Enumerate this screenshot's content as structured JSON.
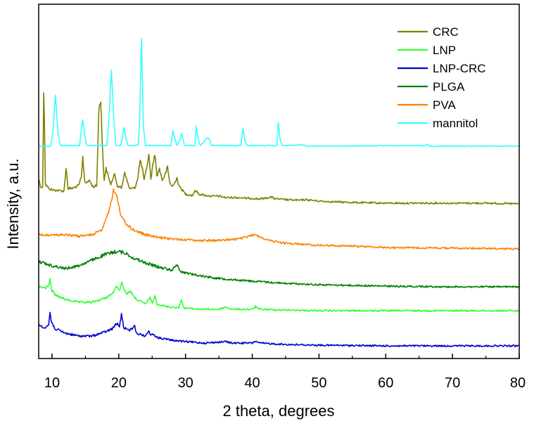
{
  "chart_data": {
    "type": "line",
    "title": "",
    "xlabel": "2 theta, degrees",
    "ylabel": "Intensity, a.u.",
    "xlim": [
      8,
      80
    ],
    "x_ticks": [
      10,
      20,
      30,
      40,
      50,
      60,
      70,
      80
    ],
    "y_ticks_shown": false,
    "legend_position": "top-right",
    "series": [
      {
        "name": "CRC",
        "color": "#808000",
        "baseline": 290,
        "decay": 35,
        "points": [
          [
            8,
            255
          ],
          [
            8.3,
            265
          ],
          [
            8.6,
            267
          ],
          [
            8.75,
            130
          ],
          [
            8.85,
            165
          ],
          [
            9.0,
            262
          ],
          [
            9.5,
            268
          ],
          [
            10,
            270
          ],
          [
            11,
            271
          ],
          [
            11.8,
            272
          ],
          [
            12.1,
            238
          ],
          [
            12.4,
            268
          ],
          [
            13,
            268
          ],
          [
            14,
            264
          ],
          [
            14.4,
            252
          ],
          [
            14.6,
            224
          ],
          [
            14.9,
            258
          ],
          [
            15.3,
            260
          ],
          [
            15.6,
            256
          ],
          [
            15.9,
            262
          ],
          [
            16.2,
            266
          ],
          [
            16.7,
            264
          ],
          [
            17.0,
            158
          ],
          [
            17.3,
            140
          ],
          [
            17.5,
            200
          ],
          [
            17.8,
            255
          ],
          [
            18.1,
            240
          ],
          [
            18.4,
            250
          ],
          [
            18.8,
            262
          ],
          [
            19.1,
            255
          ],
          [
            19.4,
            248
          ],
          [
            19.8,
            264
          ],
          [
            20.4,
            268
          ],
          [
            20.9,
            244
          ],
          [
            21.2,
            256
          ],
          [
            21.6,
            268
          ],
          [
            22.4,
            268
          ],
          [
            22.8,
            255
          ],
          [
            23.2,
            228
          ],
          [
            23.5,
            238
          ],
          [
            23.8,
            256
          ],
          [
            24.2,
            240
          ],
          [
            24.5,
            218
          ],
          [
            24.8,
            255
          ],
          [
            25.1,
            235
          ],
          [
            25.4,
            218
          ],
          [
            25.7,
            250
          ],
          [
            26.1,
            240
          ],
          [
            26.5,
            256
          ],
          [
            26.9,
            250
          ],
          [
            27.3,
            238
          ],
          [
            27.6,
            258
          ],
          [
            28.0,
            266
          ],
          [
            28.4,
            260
          ],
          [
            28.7,
            252
          ],
          [
            29.0,
            265
          ],
          [
            29.5,
            270
          ],
          [
            30,
            276
          ],
          [
            31,
            278
          ],
          [
            31.5,
            271
          ],
          [
            32,
            276
          ],
          [
            33,
            278
          ],
          [
            34,
            279
          ],
          [
            35,
            279
          ],
          [
            36,
            281
          ],
          [
            37,
            281
          ],
          [
            38,
            281
          ],
          [
            39,
            282
          ],
          [
            40,
            282
          ],
          [
            41,
            283
          ],
          [
            42,
            282
          ],
          [
            42.7,
            280
          ],
          [
            43.5,
            283
          ],
          [
            45,
            284
          ],
          [
            47,
            285
          ],
          [
            48,
            284
          ],
          [
            50,
            286
          ],
          [
            52,
            287
          ],
          [
            55,
            288
          ],
          [
            60,
            289
          ],
          [
            65,
            289
          ],
          [
            70,
            289
          ],
          [
            75,
            289
          ],
          [
            80,
            290
          ]
        ]
      },
      {
        "name": "LNP",
        "color": "#33ff33",
        "baseline": 442,
        "decay": 25,
        "points": [
          [
            8,
            408
          ],
          [
            9,
            410
          ],
          [
            9.5,
            405
          ],
          [
            9.7,
            398
          ],
          [
            9.9,
            412
          ],
          [
            10.5,
            420
          ],
          [
            12,
            426
          ],
          [
            14,
            430
          ],
          [
            16,
            430
          ],
          [
            18,
            424
          ],
          [
            19,
            418
          ],
          [
            19.7,
            408
          ],
          [
            20.2,
            412
          ],
          [
            20.5,
            400
          ],
          [
            20.8,
            412
          ],
          [
            21.2,
            418
          ],
          [
            21.8,
            414
          ],
          [
            22.2,
            422
          ],
          [
            23,
            428
          ],
          [
            24,
            432
          ],
          [
            24.7,
            424
          ],
          [
            25.1,
            432
          ],
          [
            25.4,
            420
          ],
          [
            25.7,
            432
          ],
          [
            27,
            436
          ],
          [
            29,
            438
          ],
          [
            29.4,
            425
          ],
          [
            29.7,
            438
          ],
          [
            32,
            440
          ],
          [
            35,
            440
          ],
          [
            36,
            437
          ],
          [
            37,
            440
          ],
          [
            40,
            440
          ],
          [
            40.5,
            436
          ],
          [
            41,
            440
          ],
          [
            45,
            441
          ],
          [
            50,
            442
          ],
          [
            60,
            442
          ],
          [
            70,
            442
          ],
          [
            80,
            442
          ]
        ]
      },
      {
        "name": "LNP-CRC",
        "color": "#0000cc",
        "baseline": 492,
        "decay": 25,
        "points": [
          [
            8,
            462
          ],
          [
            9,
            466
          ],
          [
            9.5,
            462
          ],
          [
            9.7,
            444
          ],
          [
            9.9,
            458
          ],
          [
            10.5,
            468
          ],
          [
            12,
            474
          ],
          [
            14,
            478
          ],
          [
            16,
            478
          ],
          [
            18,
            472
          ],
          [
            19,
            468
          ],
          [
            19.7,
            460
          ],
          [
            20.1,
            465
          ],
          [
            20.4,
            446
          ],
          [
            20.7,
            465
          ],
          [
            21.3,
            470
          ],
          [
            22.0,
            468
          ],
          [
            22.3,
            462
          ],
          [
            22.7,
            474
          ],
          [
            24,
            478
          ],
          [
            24.5,
            470
          ],
          [
            24.8,
            478
          ],
          [
            25.2,
            474
          ],
          [
            25.6,
            480
          ],
          [
            28,
            484
          ],
          [
            30,
            486
          ],
          [
            33,
            488
          ],
          [
            36,
            486
          ],
          [
            37,
            488
          ],
          [
            40,
            488
          ],
          [
            40.5,
            485
          ],
          [
            41,
            488
          ],
          [
            45,
            490
          ],
          [
            50,
            491
          ],
          [
            60,
            492
          ],
          [
            70,
            492
          ],
          [
            80,
            492
          ]
        ]
      },
      {
        "name": "PLGA",
        "color": "#008000",
        "baseline": 408,
        "decay": 30,
        "points": [
          [
            8,
            372
          ],
          [
            10,
            378
          ],
          [
            12,
            382
          ],
          [
            14,
            378
          ],
          [
            16,
            370
          ],
          [
            18,
            362
          ],
          [
            19.5,
            358
          ],
          [
            20,
            358
          ],
          [
            21,
            360
          ],
          [
            22,
            366
          ],
          [
            24,
            374
          ],
          [
            26,
            380
          ],
          [
            28,
            384
          ],
          [
            28.8,
            376
          ],
          [
            29.2,
            386
          ],
          [
            30,
            388
          ],
          [
            32,
            392
          ],
          [
            35,
            396
          ],
          [
            40,
            400
          ],
          [
            45,
            403
          ],
          [
            50,
            405
          ],
          [
            55,
            406
          ],
          [
            60,
            407
          ],
          [
            70,
            408
          ],
          [
            80,
            408
          ]
        ]
      },
      {
        "name": "PVA",
        "color": "#ff8000",
        "baseline": 354,
        "decay": 30,
        "points": [
          [
            8,
            334
          ],
          [
            10,
            334
          ],
          [
            12,
            334
          ],
          [
            14,
            336
          ],
          [
            16,
            334
          ],
          [
            17.5,
            326
          ],
          [
            18.5,
            300
          ],
          [
            19.2,
            272
          ],
          [
            19.7,
            280
          ],
          [
            20.2,
            302
          ],
          [
            21,
            318
          ],
          [
            22,
            326
          ],
          [
            24,
            334
          ],
          [
            26,
            338
          ],
          [
            28,
            340
          ],
          [
            32,
            342
          ],
          [
            35,
            342
          ],
          [
            38,
            340
          ],
          [
            39.5,
            336
          ],
          [
            40.3,
            334
          ],
          [
            41,
            336
          ],
          [
            42.5,
            342
          ],
          [
            45,
            346
          ],
          [
            50,
            349
          ],
          [
            55,
            350
          ],
          [
            60,
            352
          ],
          [
            70,
            353
          ],
          [
            80,
            354
          ]
        ]
      },
      {
        "name": "mannitol",
        "color": "#33ffff",
        "baseline": 209,
        "decay": 0,
        "points": [
          [
            8,
            208
          ],
          [
            9.8,
            208
          ],
          [
            10.1,
            190
          ],
          [
            10.5,
            135
          ],
          [
            10.9,
            190
          ],
          [
            11.2,
            207
          ],
          [
            14.1,
            207
          ],
          [
            14.3,
            192
          ],
          [
            14.6,
            170
          ],
          [
            14.9,
            192
          ],
          [
            15.2,
            207
          ],
          [
            18.2,
            207
          ],
          [
            18.5,
            170
          ],
          [
            18.9,
            100
          ],
          [
            19.3,
            175
          ],
          [
            19.6,
            207
          ],
          [
            20.3,
            207
          ],
          [
            20.5,
            198
          ],
          [
            20.8,
            182
          ],
          [
            21.1,
            198
          ],
          [
            21.4,
            207
          ],
          [
            22.9,
            207
          ],
          [
            23.1,
            180
          ],
          [
            23.4,
            55
          ],
          [
            23.7,
            180
          ],
          [
            24.0,
            207
          ],
          [
            27.8,
            207
          ],
          [
            28.1,
            186
          ],
          [
            28.4,
            198
          ],
          [
            28.7,
            207
          ],
          [
            29.2,
            198
          ],
          [
            29.4,
            190
          ],
          [
            29.6,
            198
          ],
          [
            29.9,
            207
          ],
          [
            31.4,
            207
          ],
          [
            31.6,
            180
          ],
          [
            31.9,
            198
          ],
          [
            32.2,
            207
          ],
          [
            33.3,
            196
          ],
          [
            33.6,
            198
          ],
          [
            33.9,
            207
          ],
          [
            38.3,
            207
          ],
          [
            38.6,
            182
          ],
          [
            38.9,
            200
          ],
          [
            39.2,
            207
          ],
          [
            43.7,
            207
          ],
          [
            43.9,
            174
          ],
          [
            44.2,
            200
          ],
          [
            44.5,
            207
          ],
          [
            47.8,
            206
          ],
          [
            48.1,
            208
          ],
          [
            66,
            207
          ],
          [
            66.3,
            206
          ],
          [
            66.6,
            208
          ],
          [
            80,
            208
          ]
        ]
      }
    ]
  }
}
